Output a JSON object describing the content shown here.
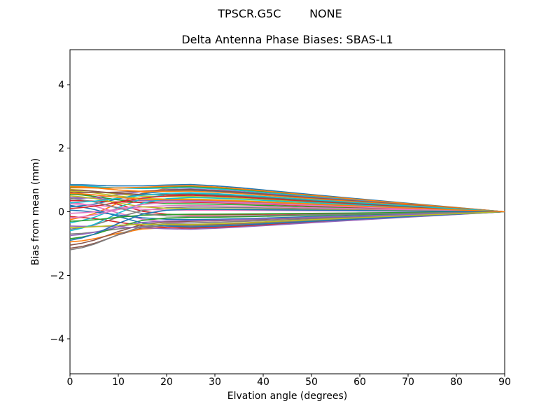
{
  "figure": {
    "suptitle": "TPSCR.G5C        NONE",
    "background_color": "#ffffff",
    "axis_color": "#000000"
  },
  "chart_data": {
    "type": "line",
    "suptitle": "TPSCR.G5C        NONE",
    "title": "Delta Antenna Phase Biases: SBAS-L1",
    "xlabel": "Elvation angle (degrees)",
    "ylabel": "Bias from mean (mm)",
    "xlim": [
      0,
      90
    ],
    "ylim": [
      -5.1,
      5.1
    ],
    "xticks": [
      0,
      10,
      20,
      30,
      40,
      50,
      60,
      70,
      80,
      90
    ],
    "yticks": [
      -4,
      -2,
      0,
      2,
      4
    ],
    "grid": false,
    "legend": null,
    "description": "Approximately 42 unlabeled antenna phase-bias curves. At 0 deg elevation the biases spread between about -1.2 mm and +0.9 mm, the bundle bulges to about +/-0.85 mm near 25 deg, then funnels and converges to 0 mm at 90 deg. Line colors cycle through the 10-color palette.",
    "x_deg": [
      0,
      2.5,
      5,
      7.5,
      10,
      15,
      20,
      25,
      30,
      35,
      40,
      50,
      60,
      70,
      80,
      90
    ],
    "shape_basis": {
      "note": "Each series y(x) in mm = v0*f0[j] + v25*f1[j] evaluated on x_deg; v0 = bias at 0 deg, v25 = bias at 25 deg; all series end at 0 mm at 90 deg.",
      "f0": [
        1,
        0.92,
        0.8,
        0.63,
        0.45,
        0.15,
        0.03,
        0,
        0,
        0,
        0,
        0,
        0,
        0,
        0,
        0
      ],
      "f1": [
        0,
        0.08,
        0.18,
        0.33,
        0.5,
        0.8,
        0.95,
        1.0,
        0.95,
        0.88,
        0.8,
        0.63,
        0.47,
        0.31,
        0.155,
        0
      ]
    },
    "palette": [
      "#1f77b4",
      "#ff7f0e",
      "#2ca02c",
      "#d62728",
      "#9467bd",
      "#8c564b",
      "#e377c2",
      "#7f7f7f",
      "#bcbd22",
      "#17becf"
    ],
    "series_endpoints_mm": [
      [
        0.85,
        0.86
      ],
      [
        -0.25,
        0.78
      ],
      [
        0.78,
        0.8
      ],
      [
        0.62,
        -0.1
      ],
      [
        0.45,
        0.35
      ],
      [
        -1.15,
        -0.42
      ],
      [
        0.3,
        -0.35
      ],
      [
        -0.55,
        0.15
      ],
      [
        0.7,
        0.48
      ],
      [
        0.82,
        0.76
      ],
      [
        0.15,
        0.68
      ],
      [
        -0.95,
        -0.5
      ],
      [
        0.55,
        0.25
      ],
      [
        -0.15,
        -0.52
      ],
      [
        0.4,
        0.72
      ],
      [
        -1.05,
        -0.3
      ],
      [
        0.25,
        0.05
      ],
      [
        -0.7,
        -0.45
      ],
      [
        0.65,
        0.4
      ],
      [
        -0.35,
        0.58
      ],
      [
        0.05,
        -0.25
      ],
      [
        0.75,
        0.82
      ],
      [
        -0.85,
        -0.18
      ],
      [
        0.35,
        0.3
      ],
      [
        -0.45,
        -0.55
      ],
      [
        0.6,
        0.7
      ],
      [
        -0.05,
        0.2
      ],
      [
        -1.2,
        -0.35
      ],
      [
        0.5,
        0.1
      ],
      [
        -0.6,
        0.45
      ],
      [
        0.2,
        -0.48
      ],
      [
        0.8,
        0.65
      ],
      [
        -0.3,
        -0.08
      ],
      [
        0.1,
        0.52
      ],
      [
        -0.75,
        -0.28
      ],
      [
        0.68,
        0.55
      ],
      [
        -0.2,
        0.32
      ],
      [
        0.42,
        -0.15
      ],
      [
        -0.5,
        -0.4
      ],
      [
        0.28,
        0.6
      ],
      [
        -0.9,
        0.08
      ],
      [
        0.58,
        0.38
      ]
    ]
  }
}
